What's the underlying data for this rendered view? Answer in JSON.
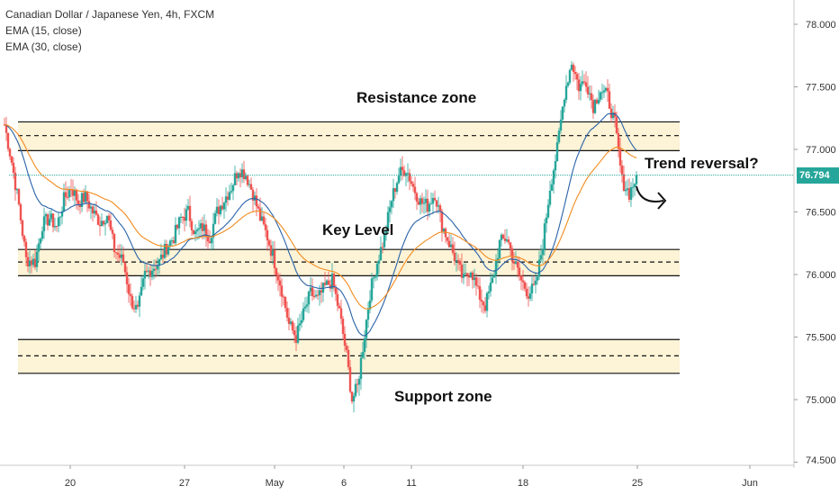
{
  "legend": {
    "symbol": "Canadian Dollar / Japanese Yen, 4h, FXCM",
    "ema_fast": "EMA (15, close)",
    "ema_slow": "EMA (30, close)"
  },
  "last_price": "76.794",
  "annotations": {
    "resistance": "Resistance zone",
    "key_level": "Key Level",
    "support": "Support zone",
    "reversal": "Trend reversal?"
  },
  "colors": {
    "up": "#26a69a",
    "down": "#ef5350",
    "ema_fast": "#2962a8",
    "ema_slow": "#f28b1e",
    "zone_fill": "#fdf3d6",
    "price_line": "#26a69a"
  },
  "chart_data": {
    "type": "candlestick",
    "title": "Canadian Dollar / Japanese Yen, 4h, FXCM",
    "y_ticks": [
      "78.000",
      "77.500",
      "77.000",
      "76.500",
      "76.000",
      "75.500",
      "75.000",
      "74.500"
    ],
    "x_ticks": [
      "20",
      "27",
      "May",
      "6",
      "11",
      "18",
      "25",
      "Jun"
    ],
    "ylim": [
      74.5,
      78.1
    ],
    "zones": [
      {
        "name": "Resistance zone",
        "top": 77.22,
        "mid": 77.11,
        "bottom": 76.99
      },
      {
        "name": "Key Level",
        "top": 76.2,
        "mid": 76.1,
        "bottom": 75.99
      },
      {
        "name": "Support zone",
        "top": 75.48,
        "mid": 75.35,
        "bottom": 75.21
      }
    ],
    "close_path": [
      [
        0,
        77.2
      ],
      [
        4,
        76.9
      ],
      [
        8,
        76.55
      ],
      [
        12,
        76.12
      ],
      [
        17,
        76.1
      ],
      [
        21,
        76.4
      ],
      [
        25,
        76.45
      ],
      [
        29,
        76.38
      ],
      [
        33,
        76.6
      ],
      [
        37,
        76.7
      ],
      [
        41,
        76.58
      ],
      [
        45,
        76.62
      ],
      [
        49,
        76.5
      ],
      [
        53,
        76.42
      ],
      [
        57,
        76.48
      ],
      [
        61,
        76.2
      ],
      [
        66,
        76.1
      ],
      [
        70,
        75.8
      ],
      [
        74,
        75.7
      ],
      [
        78,
        76.0
      ],
      [
        82,
        76.05
      ],
      [
        86,
        76.1
      ],
      [
        90,
        76.22
      ],
      [
        94,
        76.3
      ],
      [
        98,
        76.45
      ],
      [
        102,
        76.5
      ],
      [
        106,
        76.32
      ],
      [
        110,
        76.38
      ],
      [
        114,
        76.3
      ],
      [
        118,
        76.5
      ],
      [
        122,
        76.6
      ],
      [
        126,
        76.7
      ],
      [
        130,
        76.85
      ],
      [
        134,
        76.8
      ],
      [
        138,
        76.65
      ],
      [
        142,
        76.45
      ],
      [
        146,
        76.3
      ],
      [
        150,
        76.1
      ],
      [
        154,
        75.88
      ],
      [
        158,
        75.6
      ],
      [
        162,
        75.5
      ],
      [
        166,
        75.68
      ],
      [
        170,
        75.85
      ],
      [
        174,
        75.8
      ],
      [
        178,
        75.9
      ],
      [
        182,
        75.95
      ],
      [
        186,
        75.7
      ],
      [
        190,
        75.35
      ],
      [
        193,
        75.0
      ],
      [
        196,
        75.1
      ],
      [
        199,
        75.42
      ],
      [
        203,
        75.85
      ],
      [
        207,
        76.1
      ],
      [
        211,
        76.3
      ],
      [
        215,
        76.6
      ],
      [
        219,
        76.8
      ],
      [
        223,
        76.85
      ],
      [
        227,
        76.7
      ],
      [
        231,
        76.58
      ],
      [
        235,
        76.55
      ],
      [
        239,
        76.65
      ],
      [
        243,
        76.4
      ],
      [
        247,
        76.25
      ],
      [
        251,
        76.1
      ],
      [
        255,
        75.95
      ],
      [
        259,
        76.05
      ],
      [
        263,
        75.85
      ],
      [
        267,
        75.75
      ],
      [
        271,
        75.95
      ],
      [
        275,
        76.25
      ],
      [
        279,
        76.3
      ],
      [
        283,
        76.1
      ],
      [
        287,
        75.95
      ],
      [
        291,
        75.85
      ],
      [
        295,
        75.9
      ],
      [
        299,
        76.25
      ],
      [
        303,
        76.7
      ],
      [
        307,
        77.0
      ],
      [
        311,
        77.45
      ],
      [
        315,
        77.7
      ],
      [
        319,
        77.5
      ],
      [
        323,
        77.55
      ],
      [
        327,
        77.35
      ],
      [
        331,
        77.48
      ],
      [
        335,
        77.42
      ],
      [
        339,
        77.2
      ],
      [
        343,
        76.75
      ],
      [
        347,
        76.65
      ],
      [
        351,
        76.78
      ]
    ],
    "last": 76.794
  }
}
